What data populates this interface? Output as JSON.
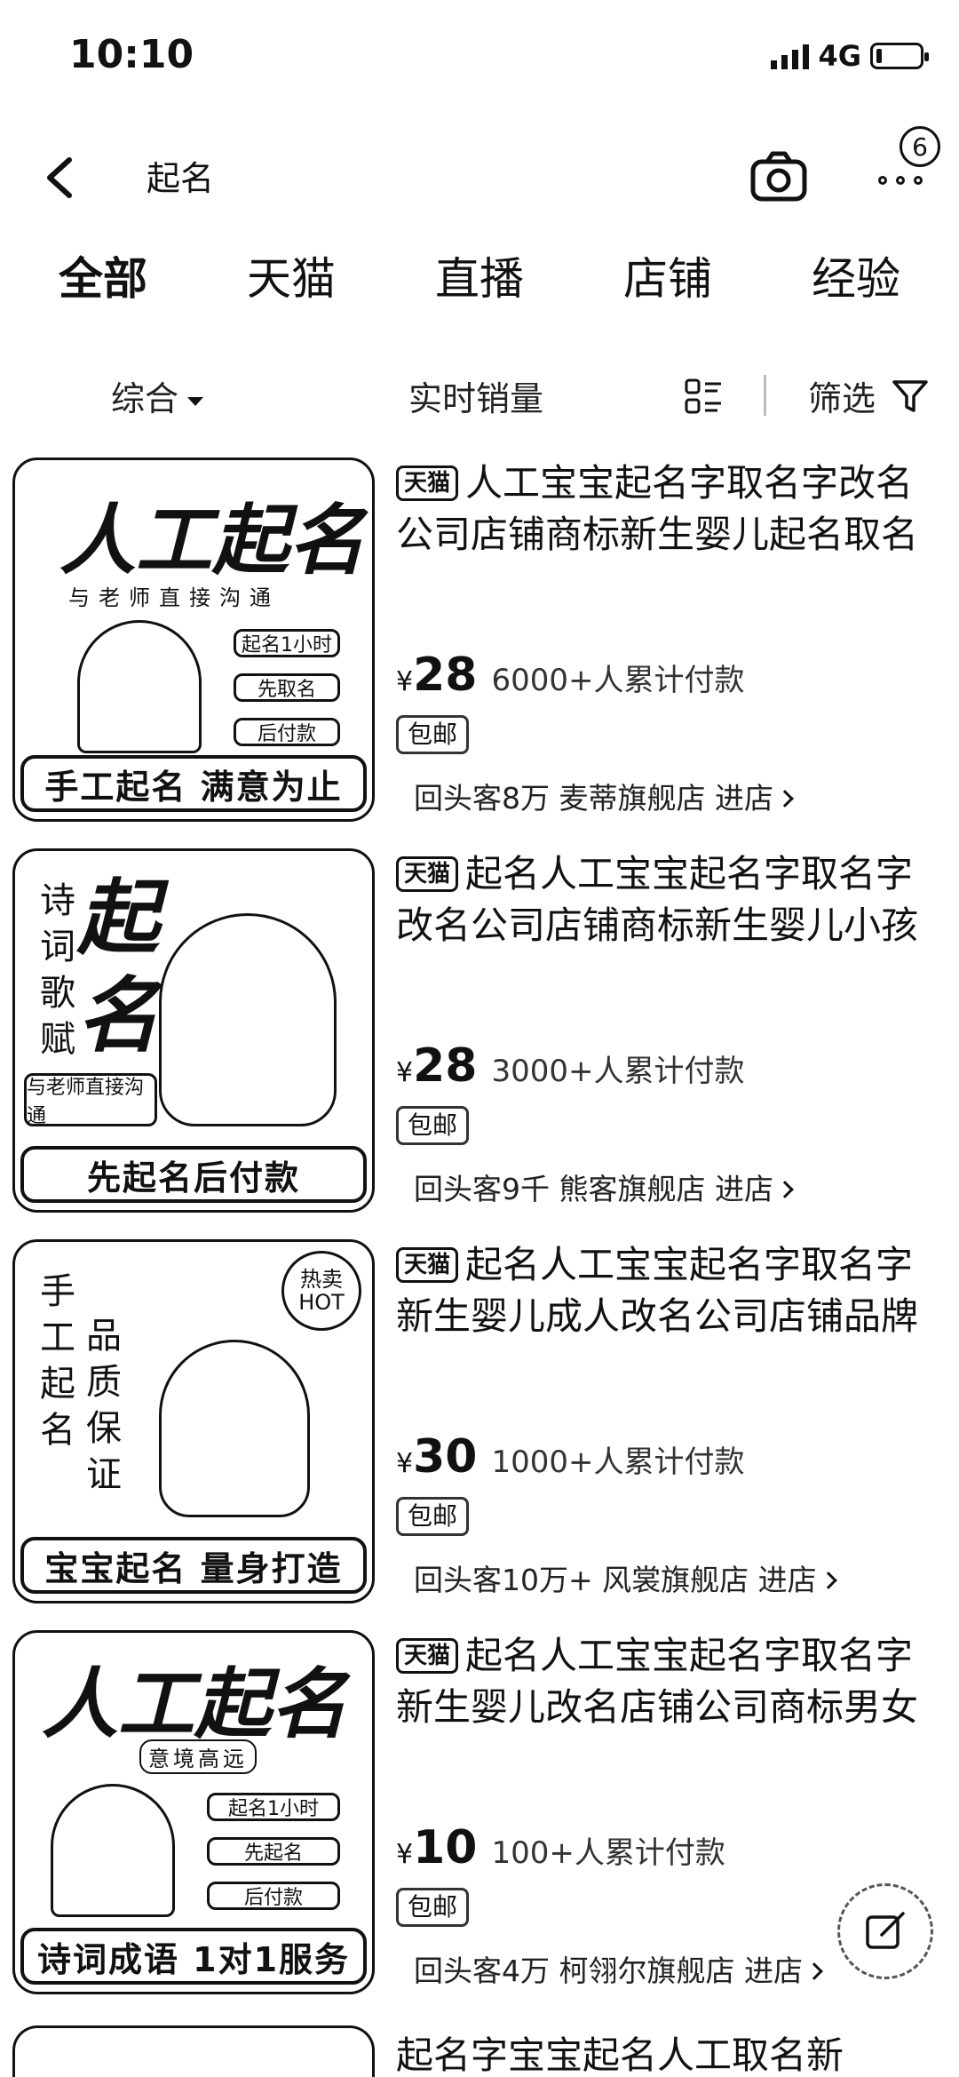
{
  "status": {
    "time": "10:10",
    "network": "4G"
  },
  "search": {
    "query": "起名",
    "badge": "6"
  },
  "tabs": [
    "全部",
    "天猫",
    "直播",
    "店铺",
    "经验"
  ],
  "filters": {
    "sort": "综合",
    "sales": "实时销量",
    "filter": "筛选"
  },
  "products": [
    {
      "platform": "天猫",
      "title": "人工宝宝起名字取名字改名公司店铺商标新生婴儿起名取名",
      "price": "28",
      "currency": "¥",
      "sales": "6000+人累计付款",
      "shipping": "包邮",
      "shop": "回头客8万 麦蒂旗舰店 进店",
      "thumb": {
        "big": "人工起名",
        "sub": "与老师直接沟通",
        "pills": [
          "起名1小时",
          "先取名",
          "后付款"
        ],
        "banner": "手工起名 满意为止"
      }
    },
    {
      "platform": "天猫",
      "title": "起名人工宝宝起名字取名字改名公司店铺商标新生婴儿小孩",
      "price": "28",
      "currency": "¥",
      "sales": "3000+人累计付款",
      "shipping": "包邮",
      "shop": "回头客9千 熊客旗舰店 进店",
      "thumb": {
        "vert": "诗词歌赋",
        "big": "起名",
        "sub": "与老师直接沟通",
        "banner": "先起名后付款"
      }
    },
    {
      "platform": "天猫",
      "title": "起名人工宝宝起名字取名字新生婴儿成人改名公司店铺品牌",
      "price": "30",
      "currency": "¥",
      "sales": "1000+人累计付款",
      "shipping": "包邮",
      "shop": "回头客10万+ 风裳旗舰店 进店",
      "thumb": {
        "vert": "手工起名",
        "vert2": "品质保证",
        "hot": "热卖 HOT",
        "banner": "宝宝起名 量身打造"
      }
    },
    {
      "platform": "天猫",
      "title": "起名人工宝宝起名字取名字新生婴儿改名店铺公司商标男女",
      "price": "10",
      "currency": "¥",
      "sales": "100+人累计付款",
      "shipping": "包邮",
      "shop": "回头客4万 柯翎尔旗舰店 进店",
      "thumb": {
        "big": "人工起名",
        "sub": "意境高远",
        "pills": [
          "起名1小时",
          "先起名",
          "后付款"
        ],
        "banner": "诗词成语 1对1服务"
      }
    }
  ],
  "partial": {
    "title": "起名字宝宝起名人工取名新"
  }
}
